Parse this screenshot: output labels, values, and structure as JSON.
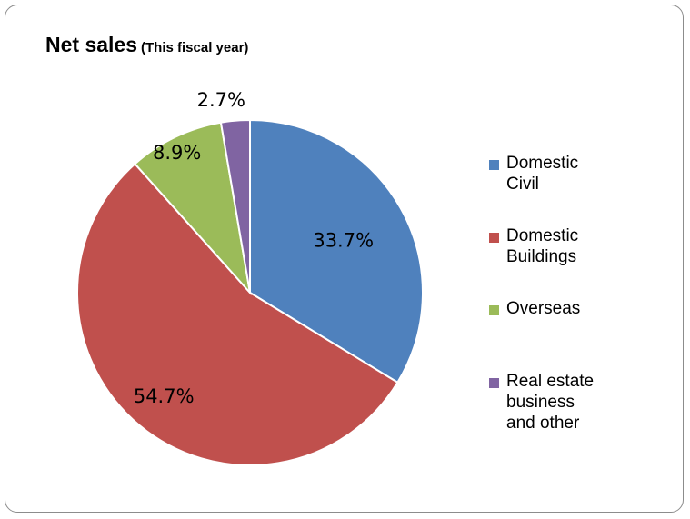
{
  "chart_data": {
    "type": "pie",
    "title": "Net sales",
    "subtitle": "(This fiscal year)",
    "slices": [
      {
        "label": "Domestic Civil",
        "value": 33.7,
        "display": "33.7%",
        "color": "#4f81bd"
      },
      {
        "label": "Domestic Buildings",
        "value": 54.7,
        "display": "54.7%",
        "color": "#c0504d"
      },
      {
        "label": "Overseas",
        "value": 8.9,
        "display": "8.9%",
        "color": "#9bbb59"
      },
      {
        "label": "Real estate business and other",
        "value": 2.7,
        "display": "2.7%",
        "color": "#8064a2"
      }
    ],
    "legend": {
      "placement": "right",
      "entries": [
        [
          "Domestic",
          "Civil"
        ],
        [
          "Domestic",
          "Buildings"
        ],
        [
          "Overseas"
        ],
        [
          "Real estate",
          "business",
          "and other"
        ]
      ]
    }
  }
}
